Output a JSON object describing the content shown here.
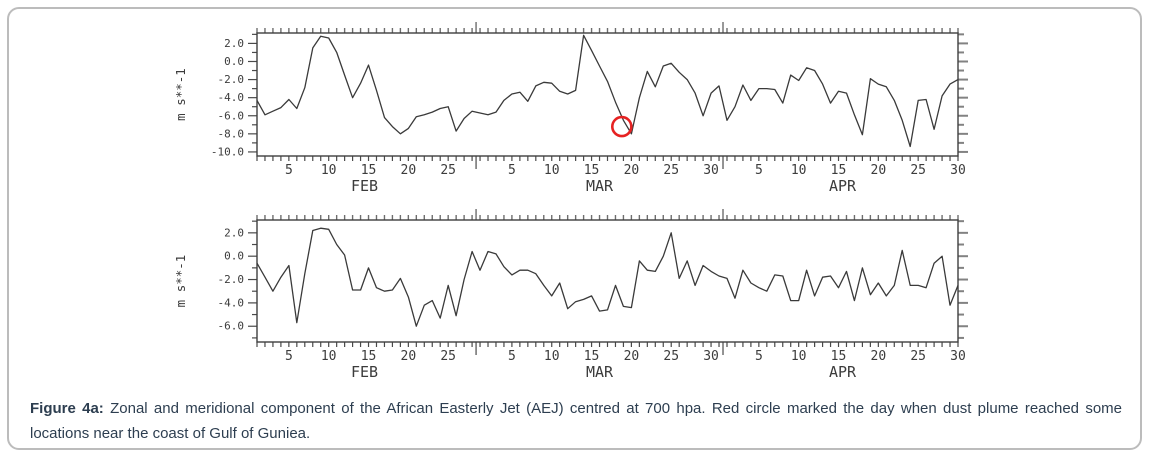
{
  "figure": {
    "background": "#ffffff",
    "border_color": "#bcbcbc",
    "line_color": "#3a3a3a",
    "annotation_color": "#e62222",
    "caption": {
      "label": "Figure 4a:",
      "line1_rest": " Zonal and meridional component of the African Easterly Jet (AEJ) centred at 700 hpa. Red circle marked the day when dust plume reached some",
      "line2": "locations near the coast of Gulf of Guniea."
    }
  },
  "chart_data": [
    {
      "type": "line",
      "id": "zonal-component",
      "series_name": "zonal component of AEJ at 700 hPa",
      "ylabel": "m s**-1",
      "xlabel": "",
      "grid": false,
      "legend": "none",
      "ylim": [
        -10.45,
        3.15
      ],
      "ytick_values": [
        2,
        0,
        -2,
        -4,
        -6,
        -8,
        -10
      ],
      "ytick_labels": [
        "2.0",
        "0.0",
        "-2.0",
        "-4.0",
        "-6.0",
        "-8.0",
        "-10.0"
      ],
      "y_minor_step": 1,
      "x_months": [
        {
          "label": "FEB",
          "days": 28
        },
        {
          "label": "MAR",
          "days": 31
        },
        {
          "label": "APR",
          "days": 30
        }
      ],
      "x_tick_label_days": [
        5,
        10,
        15,
        20,
        25,
        30
      ],
      "x_total_days": 89,
      "values": [
        -4.3,
        -5.9,
        -5.5,
        -5.1,
        -4.2,
        -5.2,
        -2.9,
        1.5,
        2.8,
        2.6,
        1.0,
        -1.5,
        -4.0,
        -2.4,
        -0.4,
        -3.2,
        -6.2,
        -7.2,
        -8.0,
        -7.4,
        -6.1,
        -5.9,
        -5.6,
        -5.2,
        -5.0,
        -7.7,
        -6.3,
        -5.5,
        -5.7,
        -5.9,
        -5.6,
        -4.3,
        -3.6,
        -3.4,
        -4.4,
        -2.7,
        -2.3,
        -2.4,
        -3.3,
        -3.6,
        -3.2,
        2.9,
        1.2,
        -0.5,
        -2.2,
        -4.5,
        -6.5,
        -8.0,
        -4.0,
        -1.1,
        -2.8,
        -0.5,
        -0.2,
        -1.2,
        -2.0,
        -3.5,
        -6.0,
        -3.5,
        -2.7,
        -6.5,
        -5.0,
        -2.6,
        -4.3,
        -3.0,
        -3.0,
        -3.1,
        -4.6,
        -1.5,
        -2.1,
        -0.7,
        -1.0,
        -2.5,
        -4.6,
        -3.3,
        -3.5,
        -5.9,
        -8.1,
        -1.9,
        -2.5,
        -2.8,
        -4.3,
        -6.5,
        -9.4,
        -4.3,
        -4.2,
        -7.5,
        -3.8,
        -2.5,
        -2.0
      ],
      "annotation": {
        "shape": "red-circle",
        "month": "MAR",
        "day_index": 46.8,
        "value": -7.2
      }
    },
    {
      "type": "line",
      "id": "meridional-component",
      "series_name": "meridional component of AEJ at 700 hPa",
      "ylabel": "m s**-1",
      "xlabel": "",
      "grid": false,
      "legend": "none",
      "ylim": [
        -7.35,
        3.1
      ],
      "ytick_values": [
        2,
        0,
        -2,
        -4,
        -6
      ],
      "ytick_labels": [
        "2.0",
        "0.0",
        "-2.0",
        "-4.0",
        "-6.0"
      ],
      "y_minor_step": 1,
      "x_months": [
        {
          "label": "FEB",
          "days": 28
        },
        {
          "label": "MAR",
          "days": 31
        },
        {
          "label": "APR",
          "days": 30
        }
      ],
      "x_tick_label_days": [
        5,
        10,
        15,
        20,
        25,
        30
      ],
      "x_total_days": 89,
      "values": [
        -0.6,
        -1.8,
        -3.0,
        -1.8,
        -0.8,
        -5.7,
        -1.5,
        2.2,
        2.4,
        2.3,
        1.0,
        0.1,
        -2.9,
        -2.9,
        -1.0,
        -2.7,
        -3.0,
        -2.9,
        -1.9,
        -3.5,
        -6.0,
        -4.2,
        -3.8,
        -5.3,
        -2.5,
        -5.1,
        -2.0,
        0.4,
        -1.2,
        0.4,
        0.2,
        -0.9,
        -1.6,
        -1.2,
        -1.2,
        -1.5,
        -2.5,
        -3.4,
        -2.3,
        -4.5,
        -3.9,
        -3.7,
        -3.4,
        -4.7,
        -4.6,
        -2.5,
        -4.3,
        -4.4,
        -0.4,
        -1.2,
        -1.3,
        0.0,
        2.0,
        -1.9,
        -0.4,
        -2.5,
        -0.8,
        -1.3,
        -1.7,
        -1.9,
        -3.6,
        -1.2,
        -2.3,
        -2.7,
        -3.0,
        -1.6,
        -1.7,
        -3.8,
        -3.8,
        -1.2,
        -3.4,
        -1.8,
        -1.7,
        -2.7,
        -1.3,
        -3.8,
        -1.0,
        -3.3,
        -2.3,
        -3.4,
        -2.5,
        0.5,
        -2.5,
        -2.5,
        -2.7,
        -0.6,
        0.0,
        -4.2,
        -2.5
      ]
    }
  ]
}
